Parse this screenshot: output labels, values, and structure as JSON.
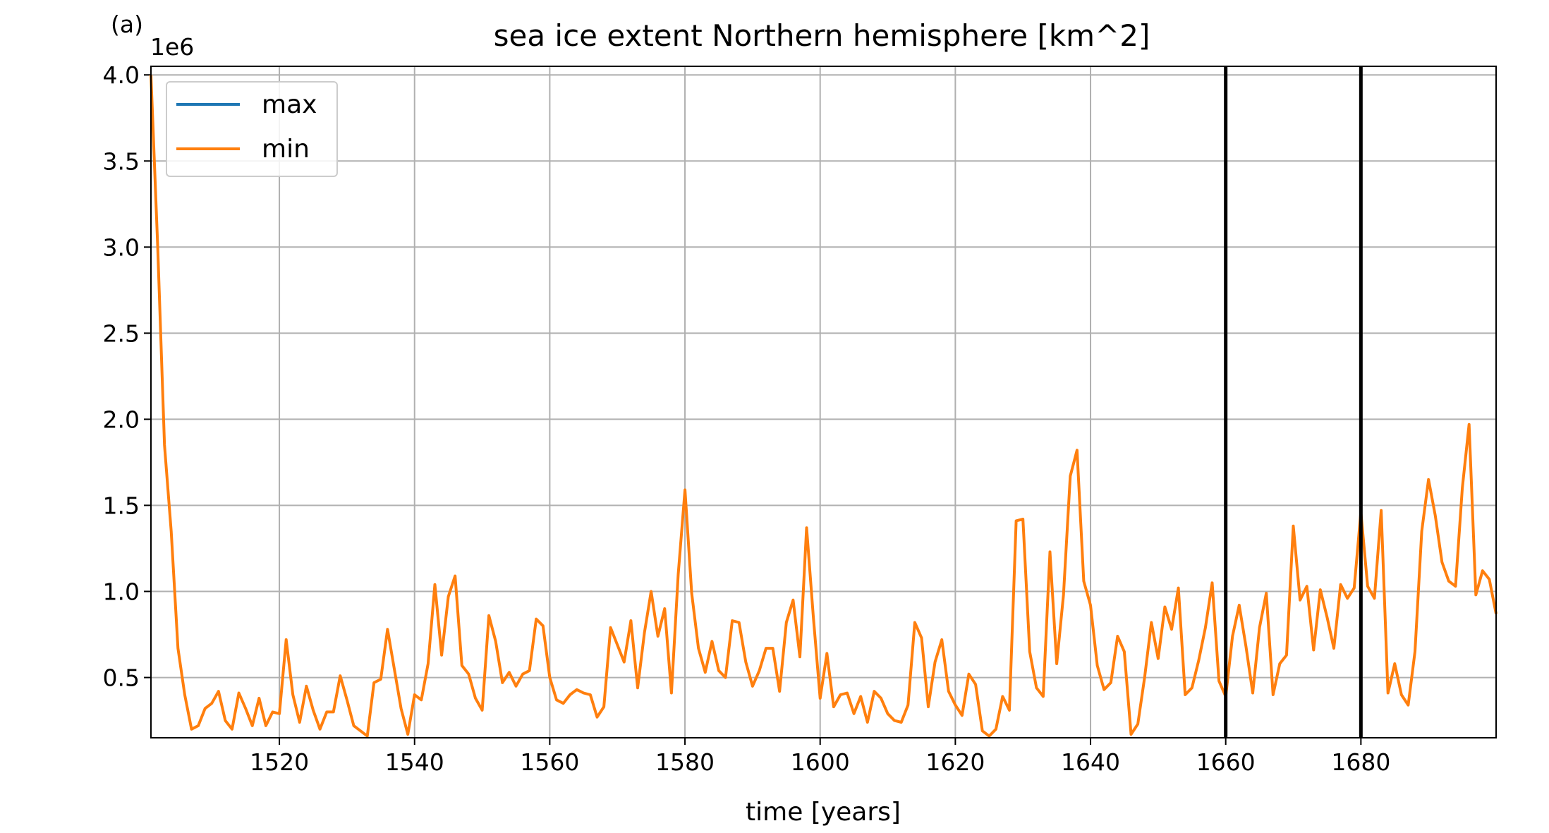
{
  "panel_label": "(a)",
  "chart_data": {
    "type": "line",
    "title": "sea ice extent Northern hemisphere [km^2]",
    "xlabel": "time [years]",
    "ylabel": "",
    "y_offset_label": "1e6",
    "y_scale": 1000000,
    "xlim": [
      1501,
      1700
    ],
    "ylim": [
      0.15,
      4.05
    ],
    "x_ticks": [
      1520,
      1540,
      1560,
      1580,
      1600,
      1620,
      1640,
      1660,
      1680
    ],
    "y_ticks": [
      0.5,
      1.0,
      1.5,
      2.0,
      2.5,
      3.0,
      3.5,
      4.0
    ],
    "y_tick_labels": [
      "0.5",
      "1.0",
      "1.5",
      "2.0",
      "2.5",
      "3.0",
      "3.5",
      "4.0"
    ],
    "grid": true,
    "legend_position": "top-left",
    "vertical_lines": [
      1660,
      1680
    ],
    "vertical_line_color": "#000000",
    "series": [
      {
        "name": "max",
        "color": "#1f77b4",
        "x": [],
        "y": []
      },
      {
        "name": "min",
        "color": "#ff7f0e",
        "x": [
          1501,
          1502,
          1503,
          1504,
          1505,
          1506,
          1507,
          1508,
          1509,
          1510,
          1511,
          1512,
          1513,
          1514,
          1515,
          1516,
          1517,
          1518,
          1519,
          1520,
          1521,
          1522,
          1523,
          1524,
          1525,
          1526,
          1527,
          1528,
          1529,
          1530,
          1531,
          1532,
          1533,
          1534,
          1535,
          1536,
          1537,
          1538,
          1539,
          1540,
          1541,
          1542,
          1543,
          1544,
          1545,
          1546,
          1547,
          1548,
          1549,
          1550,
          1551,
          1552,
          1553,
          1554,
          1555,
          1556,
          1557,
          1558,
          1559,
          1560,
          1561,
          1562,
          1563,
          1564,
          1565,
          1566,
          1567,
          1568,
          1569,
          1570,
          1571,
          1572,
          1573,
          1574,
          1575,
          1576,
          1577,
          1578,
          1579,
          1580,
          1581,
          1582,
          1583,
          1584,
          1585,
          1586,
          1587,
          1588,
          1589,
          1590,
          1591,
          1592,
          1593,
          1594,
          1595,
          1596,
          1597,
          1598,
          1599,
          1600,
          1601,
          1602,
          1603,
          1604,
          1605,
          1606,
          1607,
          1608,
          1609,
          1610,
          1611,
          1612,
          1613,
          1614,
          1615,
          1616,
          1617,
          1618,
          1619,
          1620,
          1621,
          1622,
          1623,
          1624,
          1625,
          1626,
          1627,
          1628,
          1629,
          1630,
          1631,
          1632,
          1633,
          1634,
          1635,
          1636,
          1637,
          1638,
          1639,
          1640,
          1641,
          1642,
          1643,
          1644,
          1645,
          1646,
          1647,
          1648,
          1649,
          1650,
          1651,
          1652,
          1653,
          1654,
          1655,
          1656,
          1657,
          1658,
          1659,
          1660,
          1661,
          1662,
          1663,
          1664,
          1665,
          1666,
          1667,
          1668,
          1669,
          1670,
          1671,
          1672,
          1673,
          1674,
          1675,
          1676,
          1677,
          1678,
          1679,
          1680,
          1681,
          1682,
          1683,
          1684,
          1685,
          1686,
          1687,
          1688,
          1689,
          1690,
          1691,
          1692,
          1693,
          1694,
          1695,
          1696,
          1697,
          1698,
          1699,
          1700
        ],
        "y": [
          4.0,
          3.0,
          1.85,
          1.35,
          0.67,
          0.4,
          0.2,
          0.22,
          0.32,
          0.35,
          0.42,
          0.25,
          0.2,
          0.41,
          0.32,
          0.22,
          0.38,
          0.22,
          0.3,
          0.29,
          0.72,
          0.4,
          0.24,
          0.45,
          0.31,
          0.2,
          0.3,
          0.3,
          0.51,
          0.37,
          0.22,
          0.19,
          0.16,
          0.47,
          0.49,
          0.78,
          0.55,
          0.32,
          0.17,
          0.4,
          0.37,
          0.58,
          1.04,
          0.63,
          0.97,
          1.09,
          0.57,
          0.52,
          0.38,
          0.31,
          0.86,
          0.71,
          0.47,
          0.53,
          0.45,
          0.52,
          0.54,
          0.84,
          0.8,
          0.5,
          0.37,
          0.35,
          0.4,
          0.43,
          0.41,
          0.4,
          0.27,
          0.33,
          0.79,
          0.69,
          0.59,
          0.83,
          0.44,
          0.76,
          1.0,
          0.74,
          0.9,
          0.41,
          1.1,
          1.59,
          0.99,
          0.67,
          0.53,
          0.71,
          0.54,
          0.5,
          0.83,
          0.82,
          0.59,
          0.45,
          0.54,
          0.67,
          0.67,
          0.42,
          0.82,
          0.95,
          0.62,
          1.37,
          0.85,
          0.38,
          0.64,
          0.33,
          0.4,
          0.41,
          0.29,
          0.39,
          0.24,
          0.42,
          0.38,
          0.29,
          0.25,
          0.24,
          0.34,
          0.82,
          0.73,
          0.33,
          0.59,
          0.72,
          0.42,
          0.34,
          0.28,
          0.52,
          0.46,
          0.19,
          0.16,
          0.2,
          0.39,
          0.31,
          1.41,
          1.42,
          0.65,
          0.44,
          0.39,
          1.23,
          0.58,
          0.98,
          1.67,
          1.82,
          1.06,
          0.92,
          0.57,
          0.43,
          0.47,
          0.74,
          0.65,
          0.17,
          0.23,
          0.5,
          0.82,
          0.61,
          0.91,
          0.78,
          1.02,
          0.4,
          0.44,
          0.6,
          0.79,
          1.05,
          0.48,
          0.39,
          0.74,
          0.92,
          0.68,
          0.41,
          0.79,
          0.99,
          0.4,
          0.58,
          0.63,
          1.38,
          0.95,
          1.03,
          0.66,
          1.01,
          0.85,
          0.67,
          1.04,
          0.96,
          1.02,
          1.46,
          1.03,
          0.96,
          1.47,
          0.41,
          0.58,
          0.4,
          0.34,
          0.65,
          1.35,
          1.65,
          1.44,
          1.17,
          1.06,
          1.03,
          1.6,
          1.97,
          0.98,
          1.12,
          1.07,
          0.87
        ]
      }
    ]
  }
}
